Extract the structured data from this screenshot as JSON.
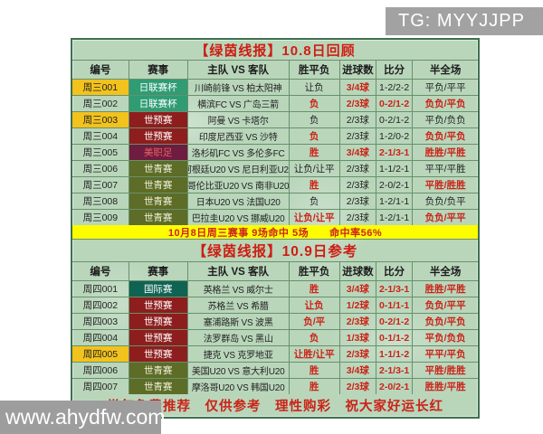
{
  "page": {
    "tg_label": "TG: MYYJJPP",
    "watermark": "www.ahydfw.com"
  },
  "colors": {
    "accent_red": "#cb2318",
    "highlight_yellow": "#f2c21d",
    "banner_yellow": "#fdfd00",
    "table_bg": "#b9d6bb",
    "comp": {
      "日联赛杯": {
        "bg": "#2f9c74",
        "fg": "#ffffff"
      },
      "世预赛": {
        "bg": "#8e1e1e",
        "fg": "#ffffff"
      },
      "美职足": {
        "bg": "#6e1c3f",
        "fg": "#e96060"
      },
      "世青赛": {
        "bg": "#5d6c26",
        "fg": "#f0f0dc"
      },
      "国际赛": {
        "bg": "#0f6353",
        "fg": "#ffffff"
      }
    }
  },
  "columns": [
    "编号",
    "赛事",
    "主队 VS 客队",
    "胜平负",
    "进球数",
    "比分",
    "半全场"
  ],
  "table1": {
    "title": "【绿茵线报】10.8日回顾",
    "banner": "10月8日周三赛事 9场命中 5场　　命中率56%",
    "rows": [
      {
        "id": "周三001",
        "hl": true,
        "comp": "日联赛杯",
        "match": "川崎前锋 VS 柏太阳神",
        "vals": [
          "让负",
          "3/4球",
          "1-2/2-2",
          "平负/平平"
        ],
        "red": [
          false,
          true,
          false,
          false
        ]
      },
      {
        "id": "周三002",
        "hl": false,
        "comp": "日联赛杯",
        "match": "横滨FC VS 广岛三箭",
        "vals": [
          "负",
          "2/3球",
          "0-2/1-2",
          "负负/平负"
        ],
        "red": [
          true,
          true,
          true,
          true
        ]
      },
      {
        "id": "周三003",
        "hl": true,
        "comp": "世预赛",
        "match": "阿曼 VS 卡塔尔",
        "vals": [
          "负",
          "2/3球",
          "0-2/1-2",
          "平负/负负"
        ],
        "red": [
          false,
          false,
          false,
          false
        ]
      },
      {
        "id": "周三004",
        "hl": false,
        "comp": "世预赛",
        "match": "印度尼西亚 VS 沙特",
        "vals": [
          "负",
          "2/3球",
          "1-2/0-2",
          "负负/平负"
        ],
        "red": [
          true,
          false,
          false,
          true
        ]
      },
      {
        "id": "周三005",
        "hl": false,
        "comp": "美职足",
        "match": "洛杉矶FC VS 多伦多FC",
        "vals": [
          "胜",
          "3/4球",
          "2-1/3-1",
          "胜胜/平胜"
        ],
        "red": [
          true,
          true,
          true,
          true
        ]
      },
      {
        "id": "周三006",
        "hl": false,
        "comp": "世青赛",
        "match": "阿根廷U20 VS 尼日利亚U20",
        "vals": [
          "让负/让平",
          "2/3球",
          "1-1/2-1",
          "平平/平胜"
        ],
        "red": [
          false,
          false,
          false,
          false
        ]
      },
      {
        "id": "周三007",
        "hl": false,
        "comp": "世青赛",
        "match": "哥伦比亚U20 VS 南非U20",
        "vals": [
          "胜",
          "2/3球",
          "2-0/2-1",
          "平胜/胜胜"
        ],
        "red": [
          true,
          false,
          false,
          true
        ]
      },
      {
        "id": "周三008",
        "hl": false,
        "comp": "世青赛",
        "match": "日本U20 VS 法国U20",
        "vals": [
          "负",
          "2/3球",
          "1-2/1-1",
          "负负/负平"
        ],
        "red": [
          false,
          false,
          false,
          false
        ]
      },
      {
        "id": "周三009",
        "hl": false,
        "comp": "世青赛",
        "match": "巴拉圭U20 VS 挪威U20",
        "vals": [
          "让负/让平",
          "2/3球",
          "1-2/1-1",
          "负负/平平"
        ],
        "red": [
          true,
          false,
          false,
          true
        ]
      }
    ]
  },
  "table2": {
    "title": "【绿茵线报】10.9日参考",
    "rows": [
      {
        "id": "周四001",
        "hl": false,
        "comp": "国际赛",
        "match": "英格兰 VS 威尔士",
        "vals": [
          "胜",
          "3/4球",
          "2-1/3-1",
          "胜胜/平胜"
        ],
        "red": [
          true,
          true,
          true,
          true
        ]
      },
      {
        "id": "周四002",
        "hl": false,
        "comp": "世预赛",
        "match": "苏格兰 VS 希腊",
        "vals": [
          "让负",
          "1/2球",
          "0-1/1-1",
          "负负/平平"
        ],
        "red": [
          true,
          true,
          true,
          true
        ]
      },
      {
        "id": "周四003",
        "hl": false,
        "comp": "世预赛",
        "match": "塞浦路斯 VS 波黑",
        "vals": [
          "负/平",
          "2/3球",
          "0-2/1-2",
          "负负/平负"
        ],
        "red": [
          true,
          true,
          true,
          true
        ]
      },
      {
        "id": "周四004",
        "hl": false,
        "comp": "世预赛",
        "match": "法罗群岛 VS 黑山",
        "vals": [
          "负",
          "1/3球",
          "0-1/1-2",
          "平负/负负"
        ],
        "red": [
          true,
          true,
          true,
          true
        ]
      },
      {
        "id": "周四005",
        "hl": true,
        "comp": "世预赛",
        "match": "捷克 VS 克罗地亚",
        "vals": [
          "让胜/让平",
          "2/3球",
          "1-1/1-2",
          "平平/平负"
        ],
        "red": [
          true,
          true,
          true,
          true
        ]
      },
      {
        "id": "周四006",
        "hl": false,
        "comp": "世青赛",
        "match": "美国U20 VS 意大利U20",
        "vals": [
          "胜",
          "3/4球",
          "2-1/3-1",
          "平胜/胜胜"
        ],
        "red": [
          true,
          true,
          true,
          true
        ]
      },
      {
        "id": "周四007",
        "hl": false,
        "comp": "世青赛",
        "match": "摩洛哥U20 VS 韩国U20",
        "vals": [
          "胜",
          "2/3球",
          "2-0/2-1",
          "胜胜/平胜"
        ],
        "red": [
          true,
          true,
          true,
          true
        ]
      }
    ]
  },
  "footer": {
    "text": "常年免费推荐　仅供参考　理性购彩　祝大家好运长红"
  }
}
